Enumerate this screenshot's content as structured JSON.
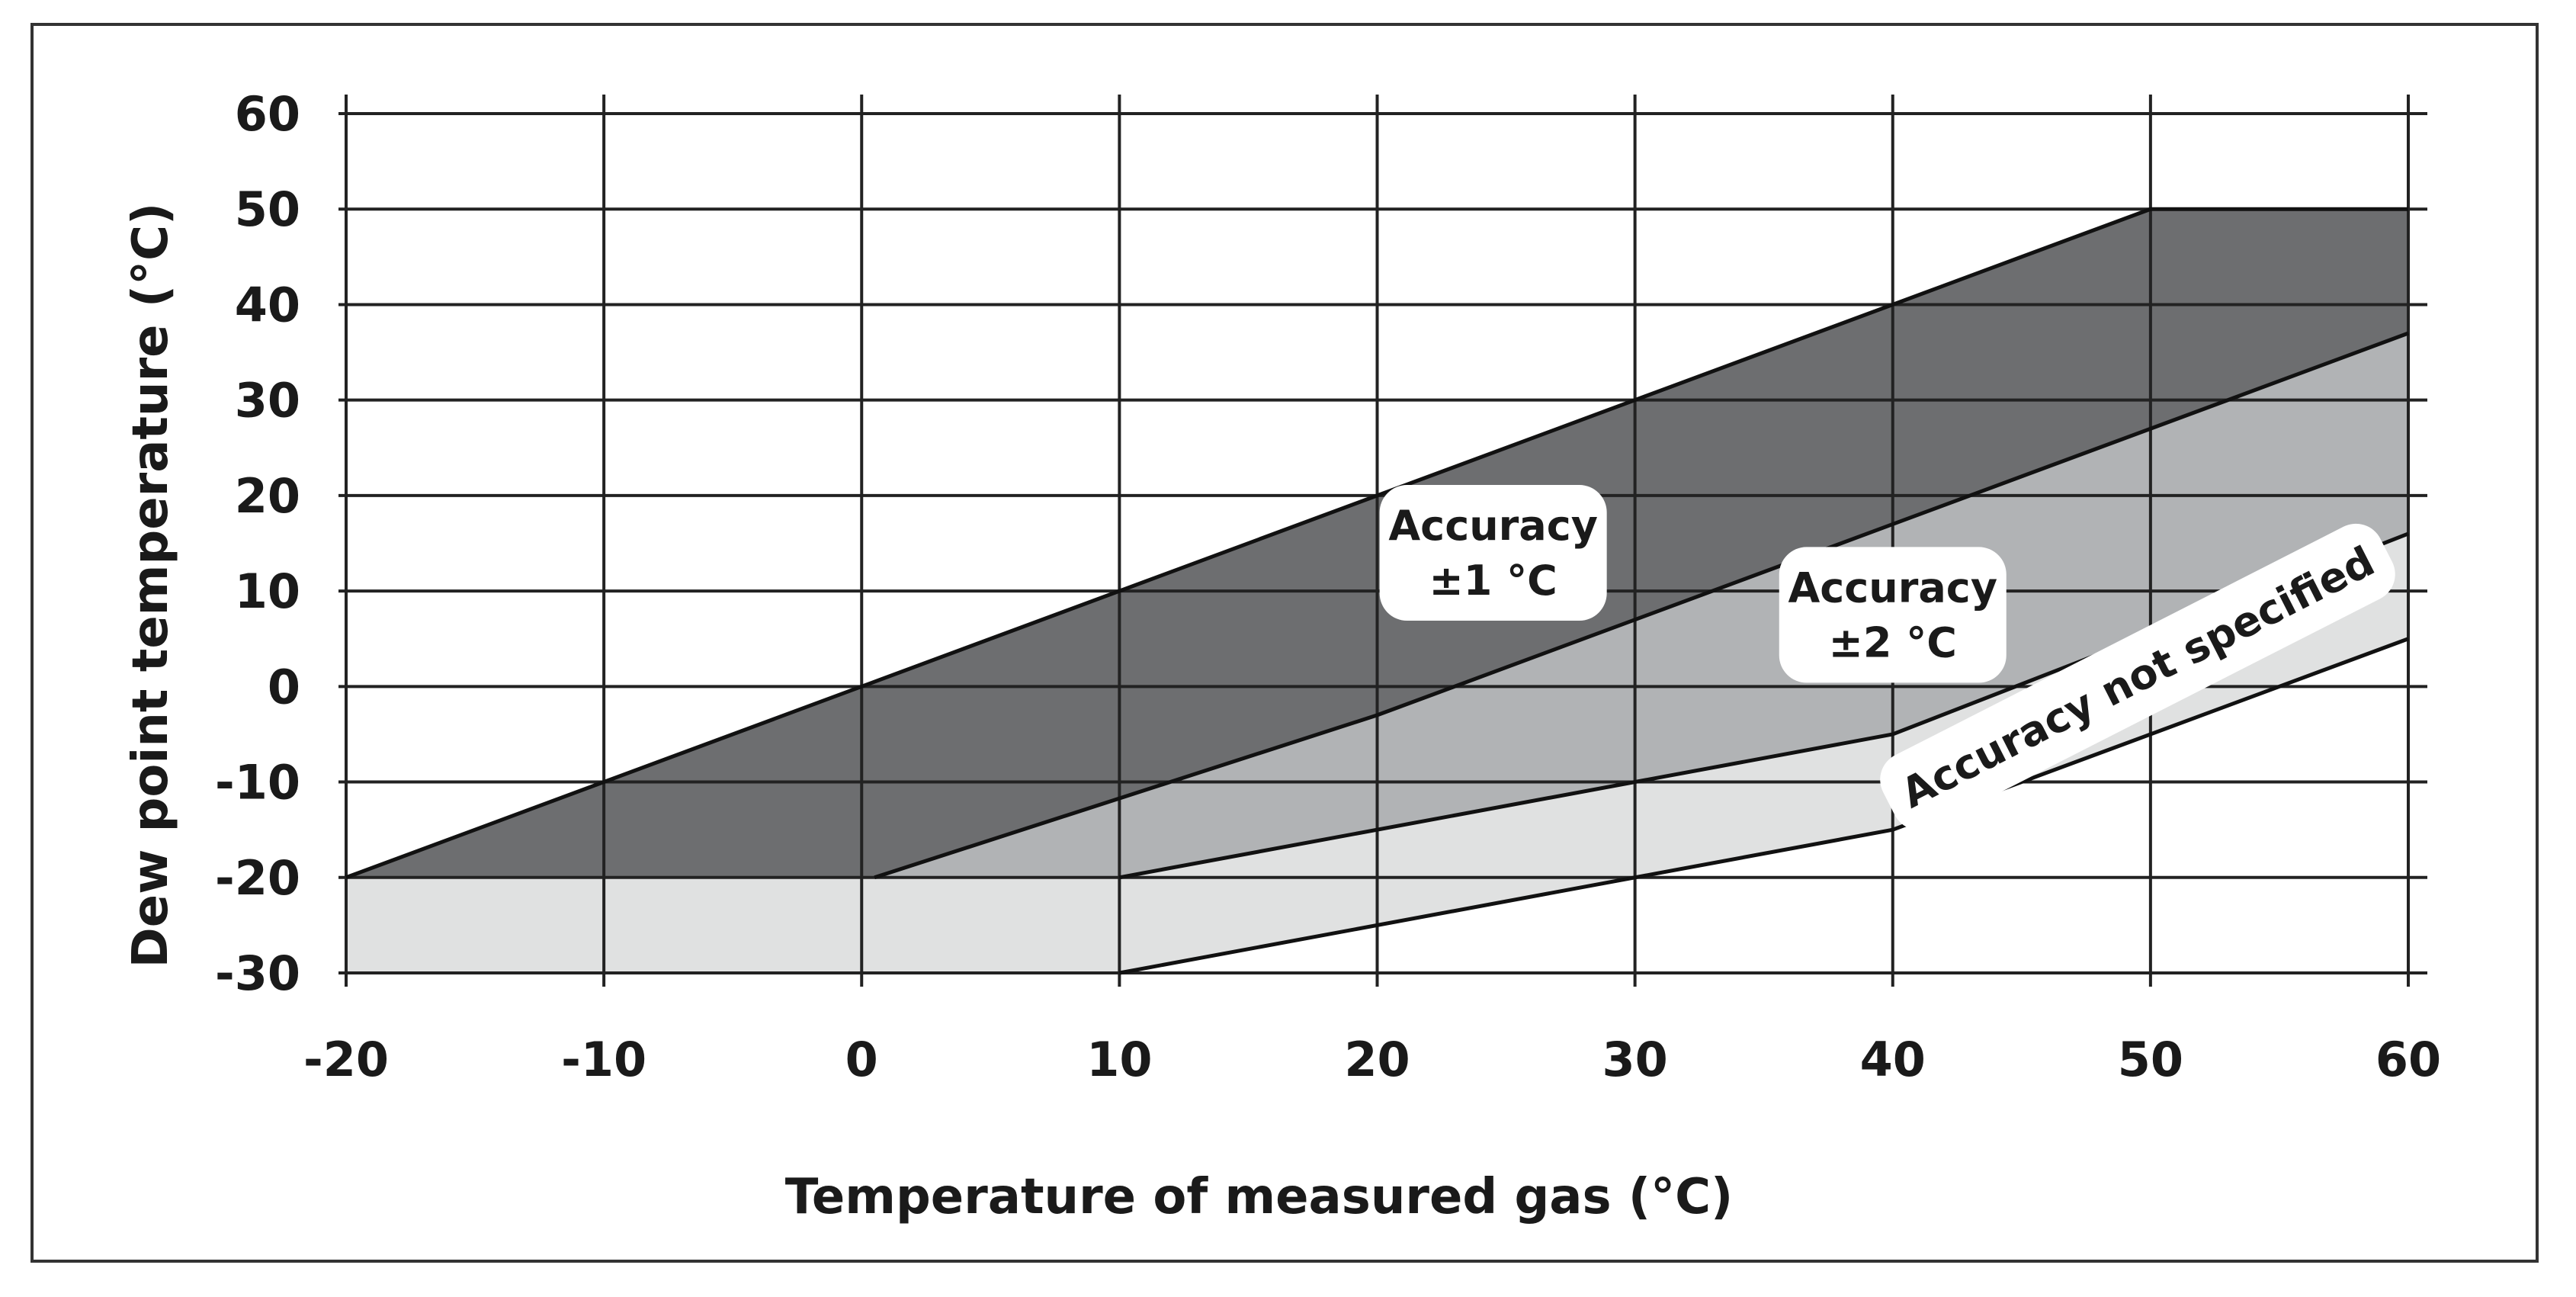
{
  "chart_data": {
    "type": "area",
    "title": "",
    "xlabel": "Temperature of measured gas  (°C)",
    "ylabel": "Dew point  temperature (°C)",
    "xlim": [
      -20,
      60
    ],
    "ylim": [
      -30,
      60
    ],
    "x_ticks": [
      "-20",
      "-10",
      "0",
      "10",
      "20",
      "30",
      "40",
      "50",
      "60"
    ],
    "y_ticks": [
      "60",
      "50",
      "40",
      "30",
      "20",
      "10",
      "0",
      "-10",
      "-20",
      "-30"
    ],
    "grid": true,
    "regions": [
      {
        "name": "Accuracy ±1 °C",
        "color": "#6d6e70",
        "polygon": [
          [
            -20,
            -20
          ],
          [
            0,
            0
          ],
          [
            50,
            50
          ],
          [
            60,
            50
          ],
          [
            60,
            37
          ],
          [
            40,
            17
          ],
          [
            20,
            -3
          ],
          [
            0.5,
            -20
          ]
        ]
      },
      {
        "name": "Accuracy ±2 °C",
        "color": "#b1b3b5",
        "polygon": [
          [
            0.5,
            -20
          ],
          [
            20,
            -3
          ],
          [
            40,
            17
          ],
          [
            60,
            37
          ],
          [
            60,
            16
          ],
          [
            40,
            -5
          ],
          [
            10,
            -20
          ]
        ]
      },
      {
        "name": "Accuracy not specified",
        "color": "#e0e1e1",
        "polygon": [
          [
            -20,
            -20
          ],
          [
            10,
            -20
          ],
          [
            40,
            -5
          ],
          [
            60,
            16
          ],
          [
            60,
            5
          ],
          [
            40,
            -15
          ],
          [
            10,
            -30
          ],
          [
            -20,
            -30
          ]
        ]
      }
    ],
    "boundary_lines": [
      [
        [
          -20,
          -20
        ],
        [
          0,
          0
        ],
        [
          50,
          50
        ],
        [
          60,
          50
        ]
      ],
      [
        [
          0.5,
          -20
        ],
        [
          20,
          -3
        ],
        [
          40,
          17
        ],
        [
          60,
          37
        ]
      ],
      [
        [
          10,
          -20
        ],
        [
          40,
          -5
        ],
        [
          60,
          16
        ]
      ],
      [
        [
          10,
          -30
        ],
        [
          40,
          -15
        ],
        [
          60,
          5
        ]
      ]
    ],
    "annotations": [
      {
        "lines": [
          "Accuracy",
          "±1 °C"
        ],
        "x": 24.5,
        "y": 14
      },
      {
        "lines": [
          "Accuracy",
          "±2 °C"
        ],
        "x": 40,
        "y": 7.5
      },
      {
        "lines": [
          "Accuracy not specified"
        ],
        "x": 49.5,
        "y": 1,
        "rotation_deg": -27
      }
    ]
  }
}
